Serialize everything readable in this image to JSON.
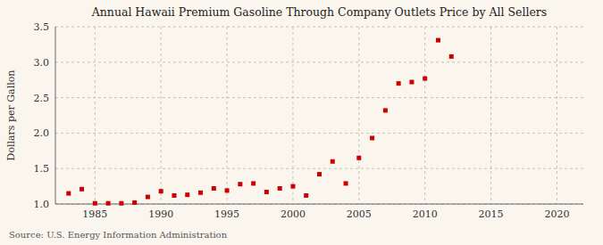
{
  "chart_data": {
    "type": "scatter",
    "title": "Annual Hawaii Premium Gasoline Through Company Outlets Price by All Sellers",
    "ylabel": "Dollars per Gallon",
    "annotations": [
      "Source: U.S. Energy Information Administration"
    ],
    "color": "#cc0000",
    "marker": "square",
    "grid": true,
    "xlim": [
      1982,
      2022
    ],
    "ylim": [
      1.0,
      3.5
    ],
    "xticks": [
      1985,
      1990,
      1995,
      2000,
      2005,
      2010,
      2015,
      2020
    ],
    "yticks": [
      {
        "value": 1.0,
        "label": "1.0"
      },
      1.5,
      {
        "value": 2.0,
        "label": "2.0"
      },
      2.5,
      {
        "value": 3.0,
        "label": "3.0"
      },
      3.5
    ],
    "x": [
      1983,
      1984,
      1985,
      1986,
      1987,
      1988,
      1989,
      1990,
      1991,
      1992,
      1993,
      1994,
      1995,
      1996,
      1997,
      1998,
      1999,
      2000,
      2001,
      2002,
      2003,
      2004,
      2005,
      2006,
      2007,
      2008,
      2009,
      2010,
      2011,
      2012
    ],
    "values": [
      1.15,
      1.21,
      1.01,
      1.01,
      1.01,
      1.02,
      1.1,
      1.18,
      1.12,
      1.13,
      1.16,
      1.22,
      1.19,
      1.28,
      1.29,
      1.17,
      1.22,
      1.25,
      1.12,
      1.42,
      1.6,
      1.29,
      1.65,
      1.93,
      2.32,
      2.7,
      2.72,
      2.77,
      3.31,
      3.08
    ]
  }
}
